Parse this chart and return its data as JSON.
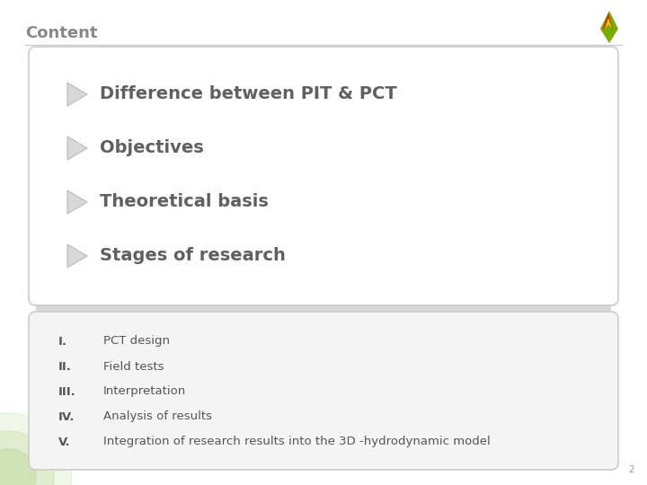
{
  "title": "Content",
  "background_color": "#ffffff",
  "slide_bg": "#ffffff",
  "top_box": {
    "items": [
      "Difference between PIT & PCT",
      "Objectives",
      "Theoretical basis",
      "Stages of research"
    ],
    "bg_color": "#ffffff",
    "border_color": "#cccccc",
    "text_color": "#606060",
    "arrow_fill": "#d8d8d8",
    "arrow_edge": "#bbbbbb",
    "font_size": 14,
    "font_weight": "bold"
  },
  "bottom_box": {
    "items": [
      [
        "I.",
        "PCT design"
      ],
      [
        "II.",
        "Field tests"
      ],
      [
        "III.",
        "Interpretation"
      ],
      [
        "IV.",
        "Analysis of results"
      ],
      [
        "V.",
        "Integration of research results into the 3D -hydrodynamic model"
      ]
    ],
    "bg_color": "#f4f4f4",
    "border_color": "#cccccc",
    "text_color": "#555555",
    "numeral_color": "#555555",
    "font_size": 9.5
  },
  "separator_color": "#d8d8d8",
  "page_number": "2",
  "title_color": "#888888",
  "title_font_size": 13,
  "title_line_color": "#cccccc"
}
